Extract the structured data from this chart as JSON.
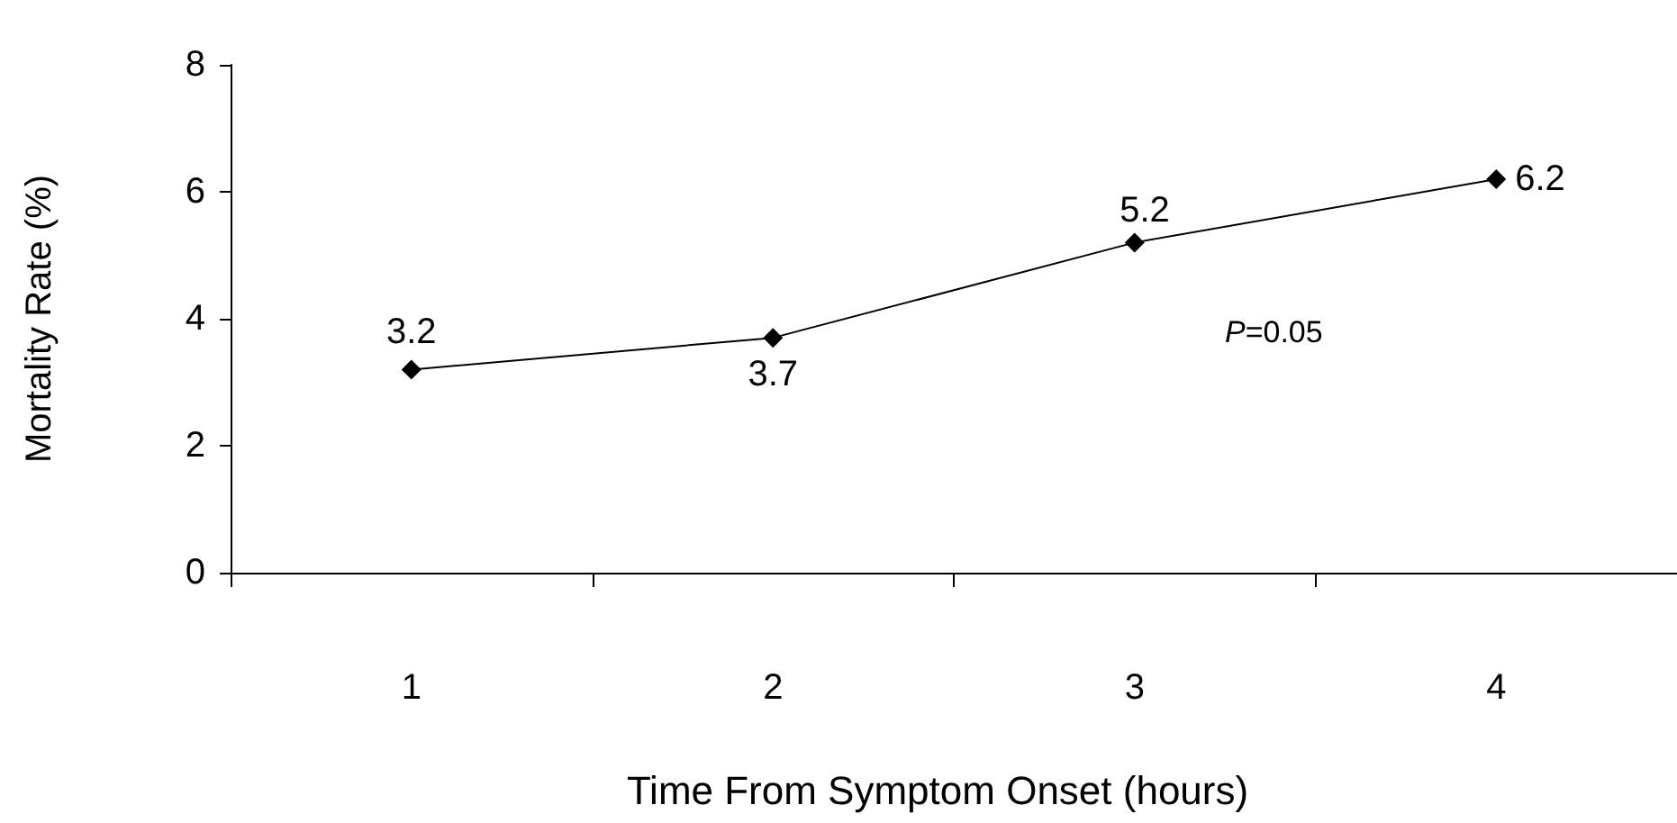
{
  "chart_data": {
    "type": "line",
    "xlabel": "Time From Symptom Onset (hours)",
    "ylabel": "Mortality Rate (%)",
    "categories": [
      "1",
      "2",
      "3",
      "4"
    ],
    "series": [
      {
        "color": "#000000",
        "values": [
          3.2,
          3.7,
          5.2,
          6.2
        ]
      }
    ],
    "ylim": [
      0,
      8
    ],
    "yticks": [
      0,
      2,
      4,
      6,
      8
    ],
    "grid": false,
    "marker": "diamond",
    "line_style": "solid",
    "data_labels": true,
    "annotations": [
      "P=0.05"
    ]
  }
}
